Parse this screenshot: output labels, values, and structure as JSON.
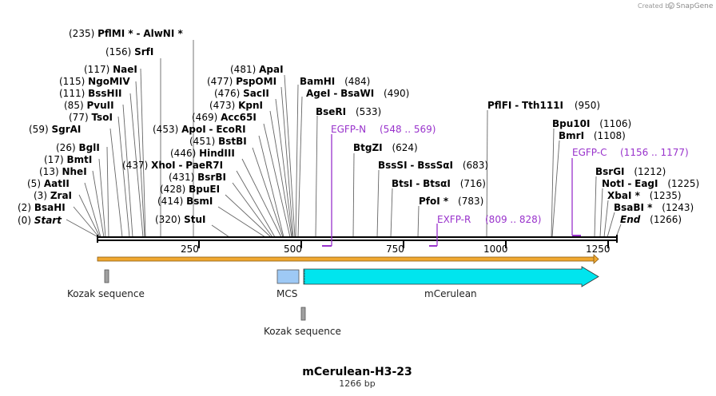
{
  "brand": {
    "created_by": "Created by",
    "name": "SnapGene"
  },
  "sites_left": [
    {
      "pos": "(235)",
      "name": "PflMI *",
      "sep": "-",
      "name2": "AlwNI *",
      "bp": 235
    },
    {
      "pos": "(156)",
      "name": "SrfI",
      "bp": 156
    },
    {
      "pos": "(117)",
      "name": "NaeI",
      "bp": 117
    },
    {
      "pos": "(115)",
      "name": "NgoMIV",
      "bp": 115
    },
    {
      "pos": "(111)",
      "name": "BssHII",
      "bp": 111
    },
    {
      "pos": "(85)",
      "name": "PvuII",
      "bp": 85
    },
    {
      "pos": "(77)",
      "name": "TsoI",
      "bp": 77
    },
    {
      "pos": "(59)",
      "name": "SgrAI",
      "bp": 59
    },
    {
      "pos": "(26)",
      "name": "BglI",
      "bp": 26
    },
    {
      "pos": "(17)",
      "name": "BmtI",
      "bp": 17
    },
    {
      "pos": "(13)",
      "name": "NheI",
      "bp": 13
    },
    {
      "pos": "(5)",
      "name": "AatII",
      "bp": 5
    },
    {
      "pos": "(3)",
      "name": "ZraI",
      "bp": 3
    },
    {
      "pos": "(2)",
      "name": "BsaHI",
      "bp": 2
    },
    {
      "pos": "(0)",
      "name": "Start",
      "bp": 0,
      "italic": true
    }
  ],
  "sites_mid": [
    {
      "pos": "(481)",
      "name": "ApaI",
      "bp": 481
    },
    {
      "pos": "(477)",
      "name": "PspOMI",
      "bp": 477
    },
    {
      "pos": "(476)",
      "name": "SacII",
      "bp": 476
    },
    {
      "pos": "(473)",
      "name": "KpnI",
      "bp": 473
    },
    {
      "pos": "(469)",
      "name": "Acc65I",
      "bp": 469
    },
    {
      "pos": "(453)",
      "name": "ApoI",
      "sep": "-",
      "name2": "EcoRI",
      "bp": 453
    },
    {
      "pos": "(451)",
      "name": "BstBI",
      "bp": 451
    },
    {
      "pos": "(446)",
      "name": "HindIII",
      "bp": 446
    },
    {
      "pos": "(437)",
      "name": "XhoI",
      "sep": "-",
      "name2": "PaeR7I",
      "bp": 437
    },
    {
      "pos": "(431)",
      "name": "BsrBI",
      "bp": 431
    },
    {
      "pos": "(428)",
      "name": "BpuEI",
      "bp": 428
    },
    {
      "pos": "(414)",
      "name": "BsmI",
      "bp": 414
    },
    {
      "pos": "(320)",
      "name": "StuI",
      "bp": 320
    }
  ],
  "sites_right": [
    {
      "name": "BamHI",
      "pos": "(484)",
      "bp": 484
    },
    {
      "name": "AgeI",
      "sep": "-",
      "name2": "BsaWI",
      "pos": "(490)",
      "bp": 490
    },
    {
      "name": "BseRI",
      "pos": "(533)",
      "bp": 533
    },
    {
      "name": "BtgZI",
      "pos": "(624)",
      "bp": 624
    },
    {
      "name": "BssSI",
      "sep": "-",
      "name2": "BssSαI",
      "pos": "(683)",
      "bp": 683
    },
    {
      "name": "BtsI",
      "sep": "-",
      "name2": "BtsαI",
      "pos": "(716)",
      "bp": 716
    },
    {
      "name": "PfoI *",
      "pos": "(783)",
      "bp": 783
    },
    {
      "name": "PflFI",
      "sep": "-",
      "name2": "Tth111I",
      "pos": "(950)",
      "bp": 950
    },
    {
      "name": "Bpu10I",
      "pos": "(1106)",
      "bp": 1106
    },
    {
      "name": "BmrI",
      "pos": "(1108)",
      "bp": 1108
    },
    {
      "name": "BsrGI",
      "pos": "(1212)",
      "bp": 1212
    },
    {
      "name": "NotI",
      "sep": "-",
      "name2": "EagI",
      "pos": "(1225)",
      "bp": 1225
    },
    {
      "name": "XbaI *",
      "pos": "(1235)",
      "bp": 1235
    },
    {
      "name": "BsaBI *",
      "pos": "(1243)",
      "bp": 1243
    },
    {
      "name": "End",
      "pos": "(1266)",
      "bp": 1266,
      "italic": true
    }
  ],
  "primers": [
    {
      "name": "EGFP-N",
      "range": "(548 .. 569)"
    },
    {
      "name": "EGFP-C",
      "range": "(1156 .. 1177)"
    },
    {
      "name": "EXFP-R",
      "range": "(809 .. 828)"
    }
  ],
  "ruler": {
    "ticks": [
      "250",
      "500",
      "750",
      "1000",
      "1250"
    ]
  },
  "features": {
    "kozak1": "Kozak sequence",
    "mcs": "MCS",
    "mcerulean": "mCerulean",
    "kozak2": "Kozak sequence"
  },
  "footer": {
    "title": "mCerulean-H3-23",
    "length": "1266 bp"
  },
  "colors": {
    "primer": "#9933cc",
    "arrow": "#00e5ee",
    "mcs": "#9ec9f5",
    "orf": "#f0a830"
  }
}
